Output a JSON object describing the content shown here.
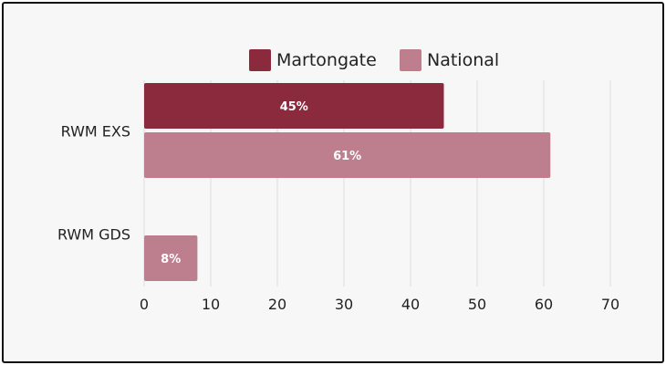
{
  "chart_data": {
    "type": "bar",
    "orientation": "horizontal",
    "categories": [
      "RWM EXS",
      "RWM GDS"
    ],
    "series": [
      {
        "name": "Martongate",
        "color": "#8b2a3d",
        "values": [
          45,
          null
        ],
        "labels": [
          "45%",
          ""
        ]
      },
      {
        "name": "National",
        "color": "#bd7f8e",
        "values": [
          61,
          8
        ],
        "labels": [
          "61%",
          "8%"
        ]
      }
    ],
    "xlim": [
      0,
      70
    ],
    "xticks": [
      0,
      10,
      20,
      30,
      40,
      50,
      60,
      70
    ],
    "tick_labels": [
      "0",
      "10",
      "20",
      "30",
      "40",
      "50",
      "60",
      "70"
    ],
    "grid": true,
    "legend_position": "top-center",
    "title": "",
    "xlabel": "",
    "ylabel": ""
  }
}
